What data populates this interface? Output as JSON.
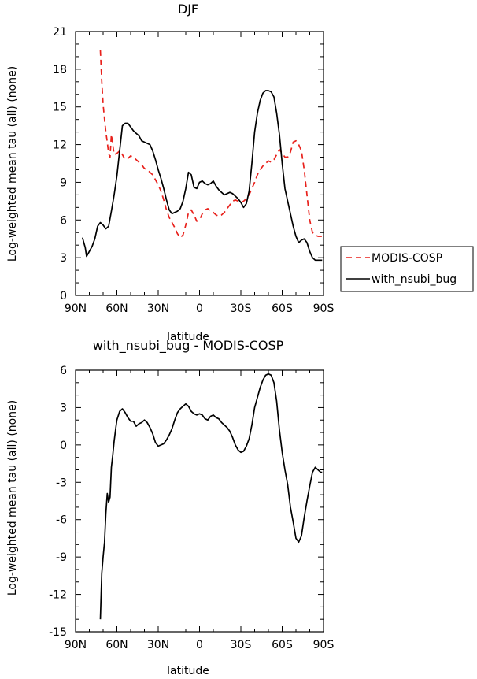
{
  "chart_data": [
    {
      "type": "line",
      "title": "DJF",
      "xlabel": "latitude",
      "ylabel": "Log-weighted mean tau (all) (none)",
      "xlim": [
        -90,
        90
      ],
      "ylim": [
        0,
        21
      ],
      "x_ticks": [
        -90,
        -60,
        -30,
        0,
        30,
        60,
        90
      ],
      "x_tick_labels": [
        "90N",
        "60N",
        "30N",
        "0",
        "30S",
        "60S",
        "90S"
      ],
      "y_ticks": [
        0,
        3,
        6,
        9,
        12,
        15,
        18,
        21
      ],
      "y_tick_labels": [
        "0",
        "3",
        "6",
        "9",
        "12",
        "15",
        "18",
        "21"
      ],
      "legend": {
        "position": "outside-right",
        "entries": [
          "MODIS-COSP",
          "with_nsubi_bug"
        ]
      },
      "series": [
        {
          "name": "MODIS-COSP",
          "color": "#e8211c",
          "dash": "dashed",
          "x": [
            -72,
            -71,
            -70,
            -69,
            -68,
            -67,
            -66,
            -65,
            -64,
            -62,
            -60,
            -58,
            -56,
            -54,
            -52,
            -50,
            -48,
            -46,
            -44,
            -42,
            -40,
            -38,
            -36,
            -34,
            -32,
            -30,
            -28,
            -26,
            -24,
            -22,
            -20,
            -18,
            -16,
            -14,
            -12,
            -10,
            -8,
            -6,
            -4,
            -2,
            0,
            2,
            4,
            6,
            8,
            10,
            12,
            14,
            16,
            18,
            20,
            22,
            24,
            26,
            28,
            30,
            32,
            34,
            36,
            38,
            40,
            42,
            44,
            46,
            48,
            50,
            52,
            54,
            56,
            58,
            60,
            62,
            64,
            66,
            68,
            70,
            72,
            74,
            76,
            78,
            80,
            82,
            84,
            86,
            88,
            89
          ],
          "values": [
            19.5,
            17.0,
            15.2,
            14.0,
            13.0,
            12.2,
            11.3,
            11.0,
            12.8,
            11.2,
            11.3,
            11.5,
            11.2,
            10.8,
            10.9,
            11.1,
            11.0,
            10.8,
            10.6,
            10.4,
            10.1,
            10.0,
            9.8,
            9.6,
            9.2,
            8.8,
            8.3,
            7.6,
            6.8,
            6.2,
            5.8,
            5.4,
            4.9,
            4.6,
            4.8,
            5.6,
            6.6,
            6.8,
            6.4,
            5.9,
            6.0,
            6.5,
            6.8,
            6.9,
            6.7,
            6.6,
            6.4,
            6.3,
            6.4,
            6.6,
            6.9,
            7.2,
            7.5,
            7.6,
            7.5,
            7.4,
            7.5,
            7.7,
            8.0,
            8.5,
            9.0,
            9.6,
            10.0,
            10.3,
            10.5,
            10.7,
            10.6,
            10.8,
            11.2,
            11.6,
            11.3,
            11.0,
            11.0,
            11.4,
            12.2,
            12.3,
            12.0,
            11.5,
            10.0,
            8.0,
            6.0,
            5.0,
            4.8,
            4.7,
            4.7,
            4.7
          ]
        },
        {
          "name": "with_nsubi_bug",
          "color": "#000000",
          "dash": "solid",
          "x": [
            -85,
            -84,
            -83,
            -82,
            -80,
            -78,
            -76,
            -74,
            -72,
            -70,
            -68,
            -66,
            -64,
            -62,
            -60,
            -58,
            -56,
            -54,
            -52,
            -50,
            -48,
            -46,
            -44,
            -42,
            -40,
            -38,
            -36,
            -34,
            -32,
            -30,
            -28,
            -26,
            -24,
            -22,
            -20,
            -18,
            -16,
            -14,
            -12,
            -10,
            -8,
            -6,
            -4,
            -2,
            0,
            2,
            4,
            6,
            8,
            10,
            12,
            14,
            16,
            18,
            20,
            22,
            24,
            26,
            28,
            30,
            32,
            34,
            36,
            38,
            40,
            42,
            44,
            46,
            48,
            50,
            52,
            54,
            56,
            58,
            60,
            62,
            64,
            66,
            68,
            70,
            72,
            74,
            76,
            78,
            80,
            82,
            84,
            86,
            88,
            89
          ],
          "values": [
            4.6,
            4.2,
            3.8,
            3.1,
            3.5,
            3.9,
            4.5,
            5.5,
            5.8,
            5.6,
            5.3,
            5.5,
            6.7,
            8.0,
            9.5,
            11.5,
            13.5,
            13.7,
            13.7,
            13.4,
            13.1,
            12.9,
            12.7,
            12.3,
            12.2,
            12.1,
            12.0,
            11.5,
            10.8,
            10.0,
            9.3,
            8.5,
            7.6,
            6.8,
            6.5,
            6.6,
            6.7,
            6.9,
            7.5,
            8.5,
            9.8,
            9.6,
            8.6,
            8.5,
            9.0,
            9.1,
            8.9,
            8.8,
            8.9,
            9.1,
            8.7,
            8.4,
            8.2,
            8.0,
            8.1,
            8.2,
            8.1,
            7.9,
            7.7,
            7.4,
            7.0,
            7.3,
            8.3,
            10.5,
            13.0,
            14.5,
            15.5,
            16.1,
            16.3,
            16.3,
            16.2,
            15.8,
            14.5,
            12.8,
            10.5,
            8.5,
            7.5,
            6.5,
            5.5,
            4.7,
            4.2,
            4.4,
            4.5,
            4.2,
            3.5,
            3.0,
            2.8,
            2.8,
            2.8,
            2.8
          ]
        }
      ]
    },
    {
      "type": "line",
      "title": "with_nsubi_bug - MODIS-COSP",
      "xlabel": "latitude",
      "ylabel": "Log-weighted mean tau (all) (none)",
      "xlim": [
        -90,
        90
      ],
      "ylim": [
        -15,
        6
      ],
      "x_ticks": [
        -90,
        -60,
        -30,
        0,
        30,
        60,
        90
      ],
      "x_tick_labels": [
        "90N",
        "60N",
        "30N",
        "0",
        "30S",
        "60S",
        "90S"
      ],
      "y_ticks": [
        -15,
        -12,
        -9,
        -6,
        -3,
        0,
        3,
        6
      ],
      "y_tick_labels": [
        "-15",
        "-12",
        "-9",
        "-6",
        "-3",
        "0",
        "3",
        "6"
      ],
      "series": [
        {
          "name": "with_nsubi_bug - MODIS-COSP",
          "color": "#000000",
          "dash": "solid",
          "x": [
            -72,
            -71,
            -70,
            -69,
            -68,
            -67,
            -66,
            -65,
            -64,
            -63,
            -62,
            -61,
            -60,
            -58,
            -56,
            -54,
            -52,
            -50,
            -48,
            -46,
            -44,
            -42,
            -40,
            -38,
            -36,
            -34,
            -32,
            -30,
            -28,
            -26,
            -24,
            -22,
            -20,
            -18,
            -16,
            -14,
            -12,
            -10,
            -8,
            -6,
            -4,
            -2,
            0,
            2,
            4,
            6,
            8,
            10,
            12,
            14,
            16,
            18,
            20,
            22,
            24,
            26,
            28,
            30,
            32,
            34,
            36,
            38,
            40,
            42,
            44,
            46,
            48,
            50,
            52,
            54,
            56,
            58,
            60,
            62,
            64,
            66,
            68,
            70,
            72,
            74,
            76,
            78,
            80,
            82,
            84,
            86,
            88,
            89
          ],
          "values": [
            -14.0,
            -10.3,
            -9.0,
            -7.8,
            -5.5,
            -3.9,
            -4.6,
            -4.2,
            -1.8,
            -0.8,
            0.3,
            1.2,
            2.0,
            2.7,
            2.9,
            2.6,
            2.2,
            1.9,
            1.9,
            1.5,
            1.7,
            1.8,
            2.0,
            1.8,
            1.4,
            0.9,
            0.2,
            -0.1,
            0.0,
            0.1,
            0.4,
            0.8,
            1.3,
            2.0,
            2.6,
            2.9,
            3.1,
            3.3,
            3.1,
            2.7,
            2.5,
            2.4,
            2.5,
            2.4,
            2.1,
            2.0,
            2.3,
            2.4,
            2.2,
            2.1,
            1.8,
            1.6,
            1.4,
            1.1,
            0.6,
            0.0,
            -0.4,
            -0.6,
            -0.5,
            -0.1,
            0.5,
            1.6,
            3.0,
            3.8,
            4.6,
            5.2,
            5.6,
            5.7,
            5.6,
            5.0,
            3.5,
            1.2,
            -0.6,
            -2.0,
            -3.2,
            -5.0,
            -6.2,
            -7.5,
            -7.8,
            -7.3,
            -5.8,
            -4.5,
            -3.3,
            -2.2,
            -1.8,
            -2.0,
            -2.2,
            -2.2
          ]
        }
      ]
    }
  ]
}
